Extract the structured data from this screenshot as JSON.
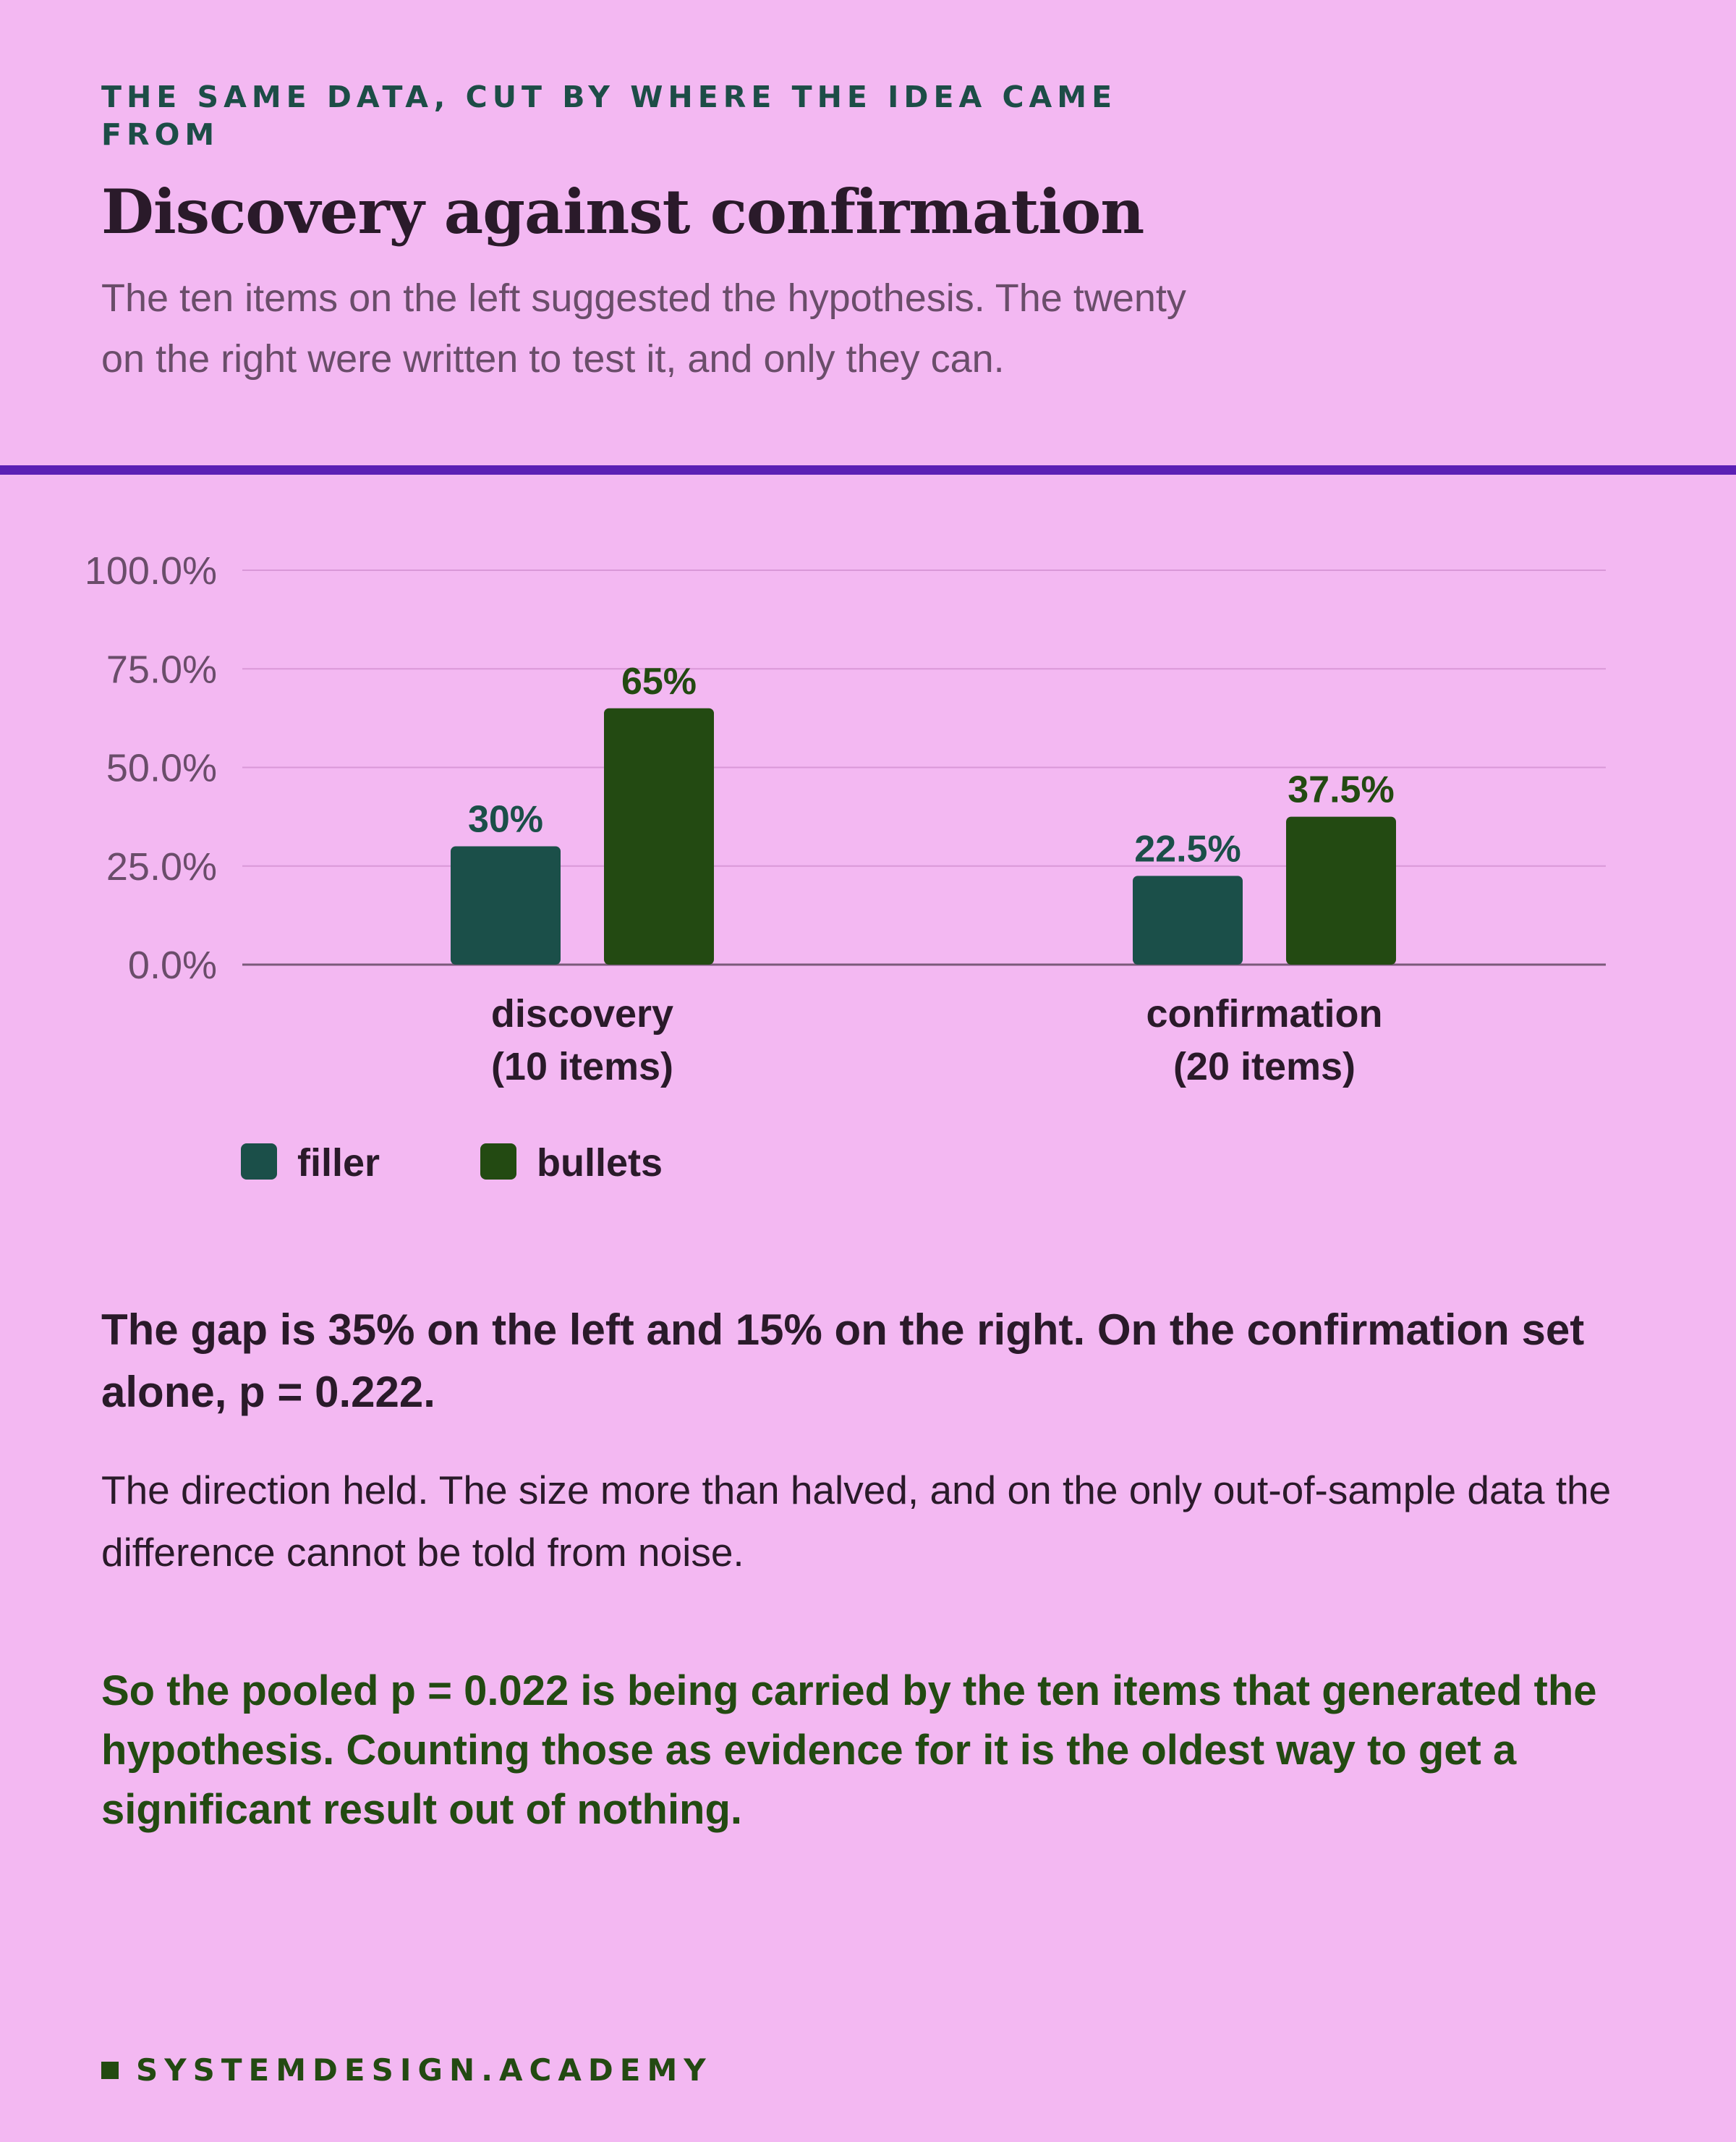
{
  "header": {
    "eyebrow": "THE SAME DATA, CUT BY WHERE THE IDEA CAME FROM",
    "title": "Discovery against confirmation",
    "subtitle": "The ten items on the left suggested the hypothesis. The twenty on the right were written to test it, and only they can."
  },
  "colors": {
    "background": "#f3b8f2",
    "filler": "#1b4f49",
    "bullets": "#234a12",
    "rule": "#5b20b4"
  },
  "chart_data": {
    "type": "bar",
    "categories": [
      [
        "discovery",
        "(10 items)"
      ],
      [
        "confirmation",
        "(20 items)"
      ]
    ],
    "series": [
      {
        "name": "filler",
        "values": [
          30,
          22.5
        ],
        "labels": [
          "30%",
          "22.5%"
        ]
      },
      {
        "name": "bullets",
        "values": [
          65,
          37.5
        ],
        "labels": [
          "65%",
          "37.5%"
        ]
      }
    ],
    "ylim": [
      0,
      100
    ],
    "yticks": [
      0,
      25,
      50,
      75,
      100
    ],
    "ytick_labels": [
      "0.0%",
      "25.0%",
      "50.0%",
      "75.0%",
      "100.0%"
    ],
    "grid": true,
    "legend_position": "bottom-left",
    "xlabel": "",
    "ylabel": ""
  },
  "findings": {
    "headline": "The gap is 35% on the left and 15% on the right. On the confirmation set alone, p = 0.222.",
    "body": "The direction held. The size more than halved, and on the only out-of-sample data the difference cannot be told from noise.",
    "conclusion": "So the pooled p = 0.022 is being carried by the ten items that generated the hypothesis. Counting those as evidence for it is the oldest way to get a significant result out of nothing."
  },
  "footer": {
    "brand": "SYSTEMDESIGN.ACADEMY"
  }
}
